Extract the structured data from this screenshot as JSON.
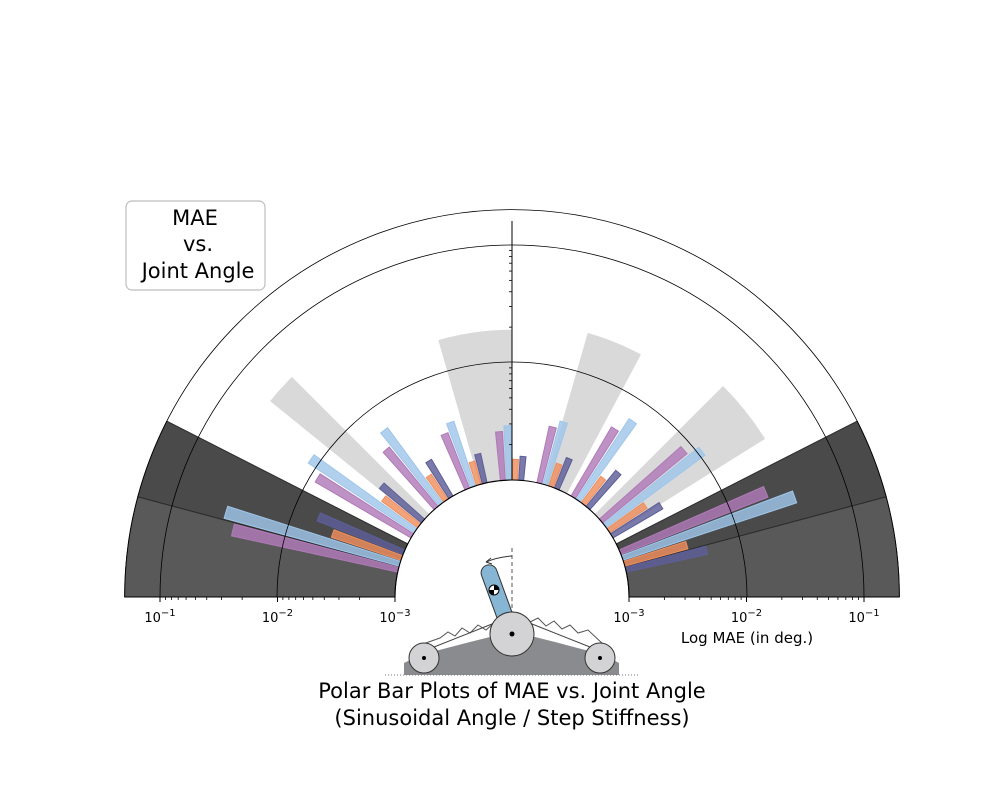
{
  "chart_data": {
    "type": "polar-bar",
    "title": "Polar Bar Plots of MAE vs. Joint Angle",
    "subtitle": "(Sinusoidal Angle / Step Stiffness)",
    "xlabel": "Log MAE (in deg.)",
    "radial_scale": "log",
    "radial_range_deg": [
      0.001,
      0.2
    ],
    "tick_labels_left": [
      "10^{-1}",
      "10^{-2}",
      "10^{-3}"
    ],
    "tick_labels_right": [
      "10^{-3}",
      "10^{-2}",
      "10^{-1}"
    ],
    "tick_values": [
      0.1,
      0.01,
      0.001
    ],
    "textbox": [
      "MAE",
      "vs.",
      "Joint Angle"
    ],
    "angles_deg": [
      -72,
      -54,
      -36,
      -18,
      0,
      18,
      36,
      54,
      72
    ],
    "series": [
      {
        "color": "#b07ab8",
        "values": [
          0.028,
          0.0088,
          0.0045,
          0.0032,
          0.0026,
          0.0031,
          0.0048,
          0.0085,
          0.022
        ]
      },
      {
        "color": "#9fc6ea",
        "values": [
          0.035,
          0.012,
          0.0062,
          0.0038,
          0.0029,
          0.0036,
          0.0066,
          0.011,
          0.036
        ]
      },
      {
        "color": "#ef8f5e",
        "values": [
          0.0042,
          0.0024,
          0.0018,
          0.0016,
          0.0015,
          0.0016,
          0.0019,
          0.0024,
          0.0036
        ]
      },
      {
        "color": "#5d5e97",
        "values": [
          0.0061,
          0.0029,
          0.0023,
          0.0018,
          0.0016,
          0.0019,
          0.0025,
          0.0031,
          0.0051
        ]
      }
    ],
    "bands": {
      "dark_color": "#595959",
      "darker_color": "#4a4a4a",
      "light_color": "#d9d9d9"
    },
    "colors": {
      "background": "#ffffff",
      "axis": "#000000"
    }
  }
}
